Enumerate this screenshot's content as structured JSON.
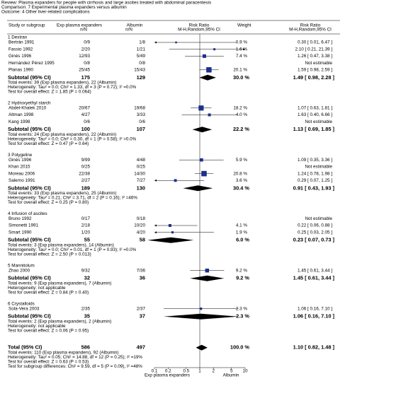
{
  "chart_data": {
    "type": "forest",
    "header": [
      "Review:  Plasma expanders for people with cirrhosis and large ascites treated with abdominal paracentesis",
      "Comparison:  7 Experimental plasma expanders versus albumin",
      "Outcome:  4 Other liver-related complications"
    ],
    "columns": {
      "study": "Study or subgroup",
      "exp": [
        "Exp plasma expanders",
        "n/N"
      ],
      "ctrl": [
        "Albumin",
        "n/N"
      ],
      "plot": [
        "Risk Ratio",
        "M-H,Random,95% CI"
      ],
      "weight": "Weight",
      "ci": [
        "Risk Ratio",
        "M-H,Random,95% CI"
      ]
    },
    "groups": [
      {
        "title": "1 Dextran",
        "studies": [
          {
            "name": "Bertrán 1991",
            "exp": "0/9",
            "ctrl": "1/8",
            "weight": "0.9 %",
            "weight_value": 0.9,
            "ci": "0.30 [ 0.01, 6.47 ]",
            "rr": 0.3,
            "lo": 0.01,
            "hi": 6.47
          },
          {
            "name": "Fassio 1992",
            "exp": "2/20",
            "ctrl": "1/21",
            "weight": "1.6 %",
            "weight_value": 1.6,
            "ci": "2.10 [ 0.21, 21.39 ]",
            "rr": 2.1,
            "lo": 0.21,
            "hi": 21.39
          },
          {
            "name": "Ginès 1996",
            "exp": "12/93",
            "ctrl": "5/49",
            "weight": "7.4 %",
            "weight_value": 7.4,
            "ci": "1.26 [ 0.47, 3.38 ]",
            "rr": 1.26,
            "lo": 0.47,
            "hi": 3.38
          },
          {
            "name": "Hernández Pérez 1995",
            "exp": "0/8",
            "ctrl": "0/8",
            "ci": "Not estimable"
          },
          {
            "name": "Planas 1990",
            "exp": "25/45",
            "ctrl": "15/43",
            "weight": "20.1 %",
            "weight_value": 20.1,
            "ci": "1.59 [ 0.98, 2.59 ]",
            "rr": 1.59,
            "lo": 0.98,
            "hi": 2.59
          }
        ],
        "subtotal": {
          "name": "Subtotal (95% CI)",
          "exp": "175",
          "ctrl": "129",
          "weight": "30.0 %",
          "ci": "1.49 [ 0.98, 2.28 ]",
          "rr": 1.49,
          "lo": 0.98,
          "hi": 2.28
        },
        "notes": [
          "Total events: 39 (Exp plasma expanders), 22 (Albumin)",
          "Heterogeneity: Tau² = 0.0; Chi² = 1.33, df = 3 (P = 0.72); I² =0.0%",
          "Test for overall effect: Z = 1.85 (P = 0.064)"
        ]
      },
      {
        "title": "2 Hydroxyethyl starch",
        "studies": [
          {
            "name": "Abdel-Khalek 2010",
            "exp": "20/67",
            "ctrl": "19/68",
            "weight": "18.2 %",
            "weight_value": 18.2,
            "ci": "1.07 [ 0.63, 1.81 ]",
            "rr": 1.07,
            "lo": 0.63,
            "hi": 1.81
          },
          {
            "name": "Altman 1998",
            "exp": "4/27",
            "ctrl": "3/33",
            "weight": "4.0 %",
            "weight_value": 4.0,
            "ci": "1.63 [ 0.40, 6.66 ]",
            "rr": 1.63,
            "lo": 0.4,
            "hi": 6.66
          },
          {
            "name": "Kang 1998",
            "exp": "0/6",
            "ctrl": "0/6",
            "ci": "Not estimable"
          }
        ],
        "subtotal": {
          "name": "Subtotal (95% CI)",
          "exp": "100",
          "ctrl": "107",
          "weight": "22.2 %",
          "ci": "1.13 [ 0.69, 1.85 ]",
          "rr": 1.13,
          "lo": 0.69,
          "hi": 1.85
        },
        "notes": [
          "Total events: 24 (Exp plasma expanders), 22 (Albumin)",
          "Heterogeneity: Tau² = 0.0; Chi² = 0.30, df = 1 (P = 0.58); I² =0.0%",
          "Test for overall effect: Z = 0.47 (P = 0.64)"
        ]
      },
      {
        "title": "3 Polygeline",
        "studies": [
          {
            "name": "Ginès 1996",
            "exp": "9/99",
            "ctrl": "4/48",
            "weight": "5.9 %",
            "weight_value": 5.9,
            "ci": "1.09 [ 0.35, 3.36 ]",
            "rr": 1.09,
            "lo": 0.35,
            "hi": 3.36
          },
          {
            "name": "Khan 2015",
            "exp": "0/25",
            "ctrl": "0/25",
            "ci": "Not estimable"
          },
          {
            "name": "Moreau 2006",
            "exp": "22/38",
            "ctrl": "14/30",
            "weight": "20.8 %",
            "weight_value": 20.8,
            "ci": "1.24 [ 0.78, 1.98 ]",
            "rr": 1.24,
            "lo": 0.78,
            "hi": 1.98
          },
          {
            "name": "Salerno 1991",
            "exp": "2/27",
            "ctrl": "7/27",
            "weight": "3.6 %",
            "weight_value": 3.6,
            "ci": "0.29 [ 0.07, 1.25 ]",
            "rr": 0.29,
            "lo": 0.07,
            "hi": 1.25
          }
        ],
        "subtotal": {
          "name": "Subtotal (95% CI)",
          "exp": "189",
          "ctrl": "130",
          "weight": "30.4 %",
          "ci": "0.91 [ 0.43, 1.93 ]",
          "rr": 0.91,
          "lo": 0.43,
          "hi": 1.93
        },
        "notes": [
          "Total events: 33 (Exp plasma expanders), 25 (Albumin)",
          "Heterogeneity: Tau² = 0.21; Chi² = 3.71, df = 2 (P = 0.16); I² =46%",
          "Test for overall effect: Z = 0.25 (P = 0.80)"
        ]
      },
      {
        "title": "4 Infusion of ascites",
        "studies": [
          {
            "name": "Bruno 1992",
            "exp": "0/17",
            "ctrl": "0/18",
            "ci": "Not estimable"
          },
          {
            "name": "Simonetti 1991",
            "exp": "2/18",
            "ctrl": "10/20",
            "weight": "4.1 %",
            "weight_value": 4.1,
            "ci": "0.22 [ 0.06, 0.88 ]",
            "rr": 0.22,
            "lo": 0.06,
            "hi": 0.88
          },
          {
            "name": "Smart 1990",
            "exp": "1/20",
            "ctrl": "4/20",
            "weight": "1.9 %",
            "weight_value": 1.9,
            "ci": "0.25 [ 0.03, 2.05 ]",
            "rr": 0.25,
            "lo": 0.03,
            "hi": 2.05
          }
        ],
        "subtotal": {
          "name": "Subtotal (95% CI)",
          "exp": "55",
          "ctrl": "58",
          "weight": "6.0 %",
          "ci": "0.23 [ 0.07, 0.73 ]",
          "rr": 0.23,
          "lo": 0.07,
          "hi": 0.73
        },
        "notes": [
          "Total events: 3 (Exp plasma expanders), 14 (Albumin)",
          "Heterogeneity: Tau² = 0.0; Chi² = 0.01, df = 1 (P = 0.93); I² =0.0%",
          "Test for overall effect: Z = 2.50 (P = 0.013)"
        ]
      },
      {
        "title": "5 Mannitolum",
        "studies": [
          {
            "name": "Zhao 2000",
            "exp": "9/32",
            "ctrl": "7/36",
            "weight": "9.2 %",
            "weight_value": 9.2,
            "ci": "1.45 [ 0.61, 3.44 ]",
            "rr": 1.45,
            "lo": 0.61,
            "hi": 3.44
          }
        ],
        "subtotal": {
          "name": "Subtotal (95% CI)",
          "exp": "32",
          "ctrl": "36",
          "weight": "9.2 %",
          "ci": "1.45 [ 0.61, 3.44 ]",
          "rr": 1.45,
          "lo": 0.61,
          "hi": 3.44
        },
        "notes": [
          "Total events: 9 (Exp plasma expanders), 7 (Albumin)",
          "Heterogeneity: not applicable",
          "Test for overall effect: Z = 0.84 (P = 0.40)"
        ]
      },
      {
        "title": "6 Crystalloids",
        "studies": [
          {
            "name": "Sola-Vera 2003",
            "exp": "2/35",
            "ctrl": "2/37",
            "weight": "2.3 %",
            "weight_value": 2.3,
            "ci": "1.06 [ 0.16, 7.10 ]",
            "rr": 1.06,
            "lo": 0.16,
            "hi": 7.1
          }
        ],
        "subtotal": {
          "name": "Subtotal (95% CI)",
          "exp": "35",
          "ctrl": "37",
          "weight": "2.3 %",
          "ci": "1.06 [ 0.16, 7.10 ]",
          "rr": 1.06,
          "lo": 0.16,
          "hi": 7.1
        },
        "notes": [
          "Total events: 2 (Exp plasma expanders), 2 (Albumin)",
          "Heterogeneity: not applicable",
          "Test for overall effect: Z = 0.06 (P = 0.95)"
        ]
      }
    ],
    "total": {
      "name": "Total (95% CI)",
      "exp": "586",
      "ctrl": "497",
      "weight": "100.0 %",
      "ci": "1.10 [ 0.82, 1.48 ]",
      "rr": 1.1,
      "lo": 0.82,
      "hi": 1.48
    },
    "total_notes": [
      "Total events: 110 (Exp plasma expanders), 92 (Albumin)",
      "Heterogeneity: Tau² = 0.05; Chi² = 14.88, df = 12 (P = 0.25); I² =19%",
      "Test for overall effect: Z = 0.63 (P = 0.53)",
      "Test for subgroup differences: Chi² = 9.59, df = 5 (P = 0.09), I² =48%"
    ],
    "log_scale": true,
    "xlim": [
      0.1,
      10
    ],
    "xticks": [
      0.1,
      0.2,
      0.5,
      1,
      2,
      5,
      10
    ],
    "favours": [
      "Exp plasma expanders",
      "Albumin"
    ],
    "color": "#1c2f8f"
  }
}
